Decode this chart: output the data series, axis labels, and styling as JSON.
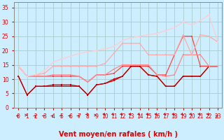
{
  "xlabel": "Vent moyen/en rafales ( km/h )",
  "background_color": "#cceeff",
  "grid_color": "#aacccc",
  "xlim": [
    -0.5,
    23.5
  ],
  "ylim": [
    0,
    37
  ],
  "yticks": [
    0,
    5,
    10,
    15,
    20,
    25,
    30,
    35
  ],
  "xticks": [
    0,
    1,
    2,
    3,
    4,
    5,
    6,
    7,
    8,
    9,
    10,
    11,
    12,
    13,
    14,
    15,
    16,
    17,
    18,
    19,
    20,
    21,
    22,
    23
  ],
  "series": [
    {
      "x": [
        0,
        1,
        2,
        3,
        4,
        5,
        6,
        7,
        8,
        9,
        10,
        11,
        12,
        13,
        14,
        15,
        16,
        17,
        18,
        19,
        20,
        21,
        22,
        23
      ],
      "y": [
        14.5,
        11.0,
        11.0,
        11.0,
        11.0,
        11.0,
        11.0,
        11.0,
        9.0,
        11.5,
        11.5,
        12.0,
        14.5,
        14.5,
        14.5,
        14.5,
        11.5,
        11.5,
        18.5,
        25.0,
        25.0,
        14.5,
        14.5,
        14.5
      ],
      "color": "#ff4444",
      "alpha": 1.0,
      "linewidth": 0.9,
      "marker": "s",
      "markersize": 1.5
    },
    {
      "x": [
        0,
        1,
        2,
        3,
        4,
        5,
        6,
        7,
        8,
        9,
        10,
        11,
        12,
        13,
        14,
        15,
        16,
        17,
        18,
        19,
        20,
        21,
        22,
        23
      ],
      "y": [
        11.0,
        4.5,
        7.5,
        7.5,
        7.5,
        7.5,
        7.5,
        7.5,
        4.5,
        8.0,
        8.5,
        9.5,
        11.0,
        14.5,
        14.5,
        11.5,
        11.0,
        7.5,
        7.5,
        11.0,
        11.0,
        11.0,
        14.5,
        14.5
      ],
      "color": "#dd0000",
      "alpha": 1.0,
      "linewidth": 0.9,
      "marker": "s",
      "markersize": 1.5
    },
    {
      "x": [
        0,
        1,
        2,
        3,
        4,
        5,
        6,
        7,
        8,
        9,
        10,
        11,
        12,
        13,
        14,
        15,
        16,
        17,
        18,
        19,
        20,
        21,
        22,
        23
      ],
      "y": [
        11.0,
        4.5,
        7.5,
        7.5,
        8.0,
        8.0,
        8.0,
        7.5,
        4.5,
        8.0,
        8.5,
        10.0,
        11.0,
        14.5,
        14.5,
        11.5,
        11.0,
        7.5,
        7.5,
        11.0,
        11.0,
        11.0,
        14.5,
        14.5
      ],
      "color": "#bb0000",
      "alpha": 1.0,
      "linewidth": 0.9,
      "marker": "s",
      "markersize": 1.5
    },
    {
      "x": [
        0,
        1,
        2,
        3,
        4,
        5,
        6,
        7,
        8,
        9,
        10,
        11,
        12,
        13,
        14,
        15,
        16,
        17,
        18,
        19,
        20,
        21,
        22,
        23
      ],
      "y": [
        14.5,
        11.0,
        11.0,
        11.0,
        11.5,
        11.5,
        11.5,
        11.0,
        9.0,
        11.5,
        11.5,
        13.5,
        15.0,
        15.0,
        15.0,
        15.0,
        11.5,
        11.0,
        11.5,
        18.5,
        18.5,
        18.5,
        14.5,
        14.5
      ],
      "color": "#ff8888",
      "alpha": 1.0,
      "linewidth": 0.9,
      "marker": "s",
      "markersize": 1.5
    },
    {
      "x": [
        0,
        1,
        2,
        3,
        4,
        5,
        6,
        7,
        8,
        9,
        10,
        11,
        12,
        13,
        14,
        15,
        16,
        17,
        18,
        19,
        20,
        21,
        22,
        23
      ],
      "y": [
        14.5,
        11.0,
        11.5,
        12.0,
        14.5,
        14.5,
        14.5,
        14.5,
        14.5,
        14.5,
        15.5,
        19.0,
        22.5,
        22.5,
        22.5,
        18.5,
        18.5,
        18.5,
        18.5,
        25.5,
        18.5,
        25.5,
        25.0,
        23.0
      ],
      "color": "#ffaaaa",
      "alpha": 1.0,
      "linewidth": 0.9,
      "marker": "s",
      "markersize": 1.5
    },
    {
      "x": [
        0,
        1,
        2,
        3,
        4,
        5,
        6,
        7,
        8,
        9,
        10,
        11,
        12,
        13,
        14,
        15,
        16,
        17,
        18,
        19,
        20,
        21,
        22,
        23
      ],
      "y": [
        14.5,
        11.0,
        11.5,
        13.0,
        16.0,
        17.0,
        18.0,
        19.0,
        19.5,
        20.0,
        20.5,
        21.5,
        23.5,
        24.5,
        25.0,
        25.5,
        26.0,
        27.0,
        28.0,
        30.0,
        29.0,
        30.5,
        32.5,
        23.0
      ],
      "color": "#ffcccc",
      "alpha": 1.0,
      "linewidth": 0.9,
      "marker": "s",
      "markersize": 1.5
    }
  ],
  "xlabel_fontsize": 7,
  "tick_fontsize": 5.5,
  "tick_color": "#dd0000",
  "label_color": "#dd0000",
  "spine_color": "#888888"
}
